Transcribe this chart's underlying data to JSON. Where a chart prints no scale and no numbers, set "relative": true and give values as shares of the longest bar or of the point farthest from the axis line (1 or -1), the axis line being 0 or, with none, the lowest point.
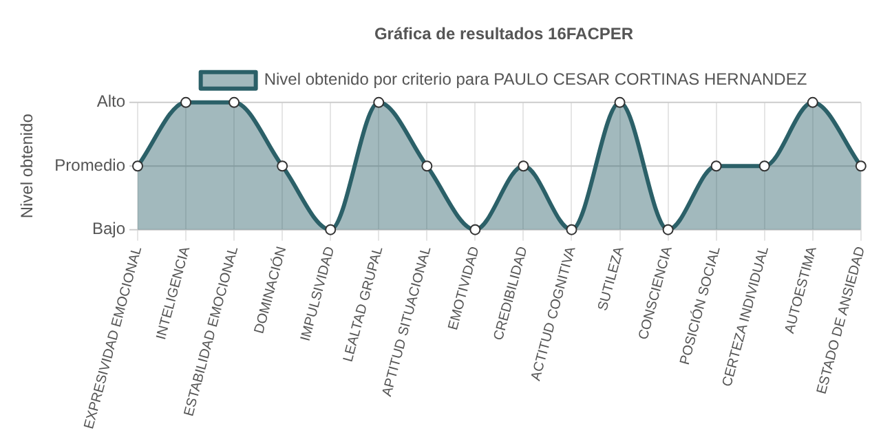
{
  "chart_data": {
    "type": "area",
    "title": "Gráfica de resultados 16FACPER",
    "ylabel": "Nivel obtenido",
    "relative": true,
    "categories": [
      "EXPRESIVIDAD EMOCIONAL",
      "INTELIGENCIA",
      "ESTABILIDAD EMOCIONAL",
      "DOMINACIÓN",
      "IMPULSIVIDAD",
      "LEALTAD GRUPAL",
      "APTITUD SITUACIONAL",
      "EMOTIVIDAD",
      "CREDIBILIDAD",
      "ACTITUD COGNITIVA",
      "SUTILEZA",
      "CONSCIENCIA",
      "POSICIÓN SOCIAL",
      "CERTEZA INDIVIDUAL",
      "AUTOESTIMA",
      "ESTADO DE ANSIEDAD"
    ],
    "series": [
      {
        "name": "Nivel obtenido por criterio para PAULO CESAR CORTINAS HERNANDEZ",
        "color": "#2b6068",
        "values": [
          0.5,
          1,
          1,
          0.5,
          0,
          1,
          0.5,
          0,
          0.5,
          0,
          1,
          0,
          0.5,
          0.5,
          1,
          0.5
        ]
      }
    ],
    "ref_lines": [
      {
        "axis": "y",
        "value": 1,
        "label": "Alto",
        "color": "#cccccc"
      },
      {
        "axis": "y",
        "value": 0.5,
        "label": "Promedio",
        "color": "#cccccc"
      },
      {
        "axis": "y",
        "value": 0,
        "label": "Bajo",
        "color": "#cccccc"
      }
    ],
    "grid": "x",
    "legend": "top",
    "marker": "circle"
  }
}
